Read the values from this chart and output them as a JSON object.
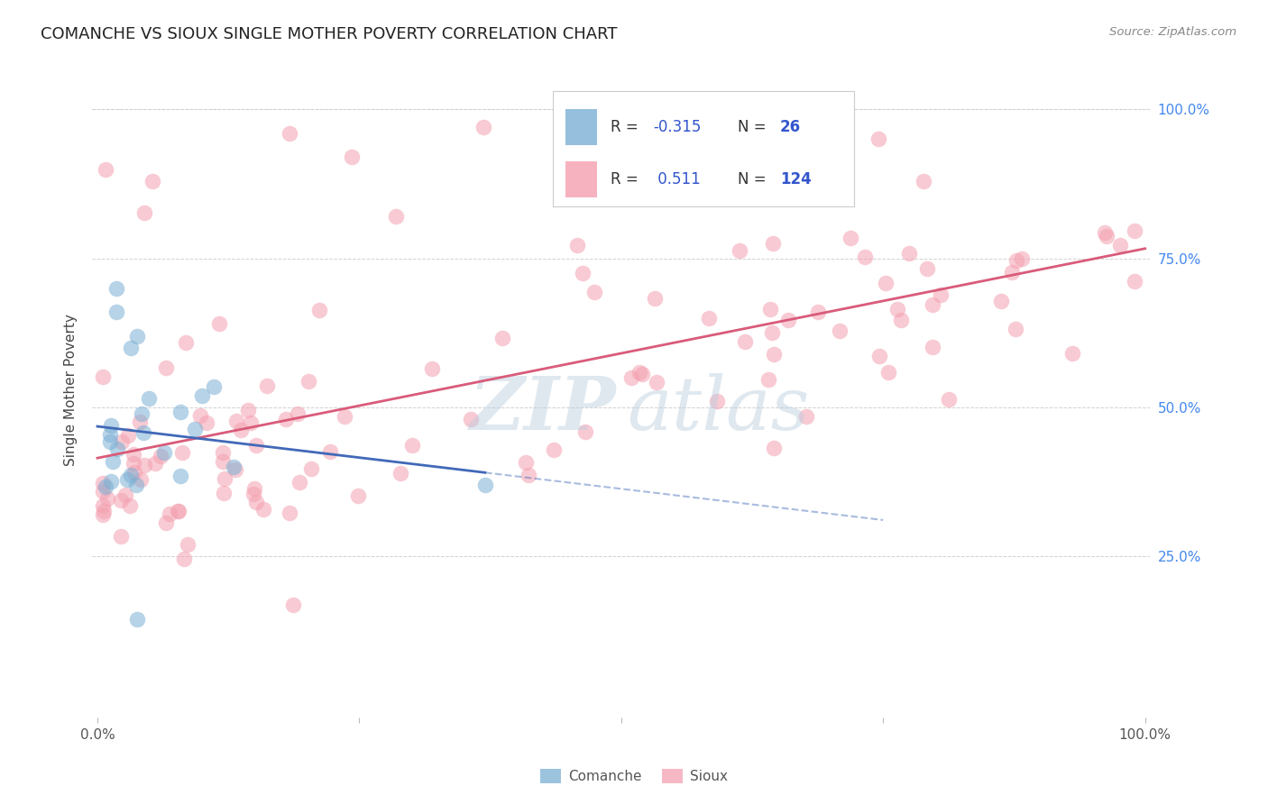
{
  "title": "COMANCHE VS SIOUX SINGLE MOTHER POVERTY CORRELATION CHART",
  "source": "Source: ZipAtlas.com",
  "ylabel": "Single Mother Poverty",
  "comanche_R": -0.315,
  "comanche_N": 26,
  "sioux_R": 0.511,
  "sioux_N": 124,
  "comanche_color": "#7BAFD4",
  "sioux_color": "#F4A0B0",
  "comanche_line_color": "#4169B8",
  "sioux_line_color": "#D95B7A",
  "background_color": "#FFFFFF",
  "grid_color": "#CCCCCC",
  "right_tick_color": "#4488EE",
  "legend_text_color": "#3355CC",
  "legend_label_color": "#333333",
  "watermark_color": "#B8CCDD",
  "title_color": "#222222",
  "source_color": "#888888"
}
